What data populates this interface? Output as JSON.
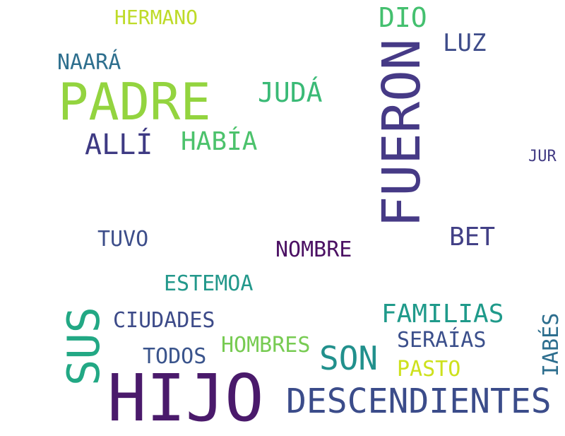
{
  "words": {
    "hijo": {
      "text": "HIJO",
      "color": "#4a1a6b"
    },
    "fueron": {
      "text": "FUERON",
      "color": "#463a86"
    },
    "padre": {
      "text": "PADRE",
      "color": "#93d43f"
    },
    "descendientes": {
      "text": "DESCENDIENTES",
      "color": "#3b4c8a"
    },
    "sus": {
      "text": "SUS",
      "color": "#22a884"
    },
    "son": {
      "text": "SON",
      "color": "#21908c"
    },
    "familias": {
      "text": "FAMILIAS",
      "color": "#1f9a8a"
    },
    "juda": {
      "text": "JUDÁ",
      "color": "#3aba76"
    },
    "alli": {
      "text": "ALLÍ",
      "color": "#3e3a83"
    },
    "habia": {
      "text": "HABÍA",
      "color": "#4cc26c"
    },
    "dio": {
      "text": "DIO",
      "color": "#44c06f"
    },
    "luz": {
      "text": "LUZ",
      "color": "#3e4c8a"
    },
    "bet": {
      "text": "BET",
      "color": "#424086"
    },
    "nombre": {
      "text": "NOMBRE",
      "color": "#4b1063"
    },
    "tuvo": {
      "text": "TUVO",
      "color": "#3d4e8a"
    },
    "estemoa": {
      "text": "ESTEMOA",
      "color": "#23988b"
    },
    "ciudades": {
      "text": "CIUDADES",
      "color": "#3d4b89"
    },
    "hombres": {
      "text": "HOMBRES",
      "color": "#77cb52"
    },
    "todos": {
      "text": "TODOS",
      "color": "#3a548c"
    },
    "serayas": {
      "text": "SERAÍAS",
      "color": "#3b4f8b"
    },
    "pasto": {
      "text": "PASTO",
      "color": "#cde11d"
    },
    "iabes": {
      "text": "IABÉS",
      "color": "#2d6e8e"
    },
    "hermano": {
      "text": "HERMANO",
      "color": "#bedb28"
    },
    "naara": {
      "text": "NAARÁ",
      "color": "#2e6f8e"
    },
    "jur": {
      "text": "JUR",
      "color": "#433c84"
    }
  }
}
